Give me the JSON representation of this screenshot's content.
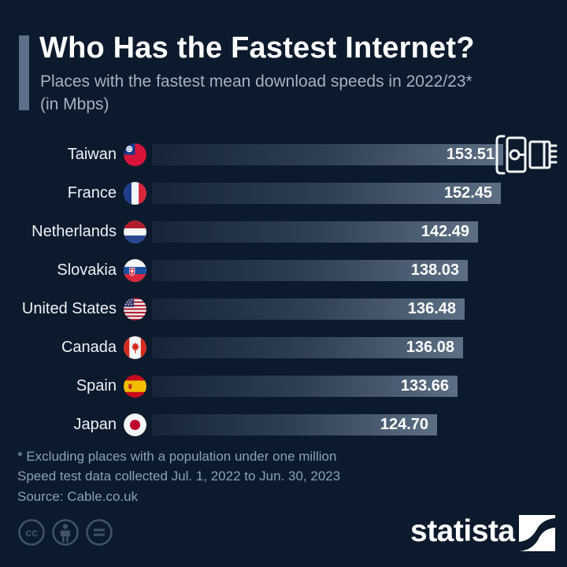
{
  "chart_data": {
    "type": "bar",
    "orientation": "horizontal",
    "title": "Who Has the Fastest Internet?",
    "subtitle": "Places with the fastest mean download speeds in 2022/23*",
    "unit_note": "(in Mbps)",
    "unit": "Mbps",
    "categories": [
      "Taiwan",
      "France",
      "Netherlands",
      "Slovakia",
      "United States",
      "Canada",
      "Spain",
      "Japan"
    ],
    "values": [
      153.51,
      152.45,
      142.49,
      138.03,
      136.48,
      136.08,
      133.66,
      124.7
    ],
    "value_labels": [
      "153.51",
      "152.45",
      "142.49",
      "138.03",
      "136.48",
      "136.08",
      "133.66",
      "124.70"
    ],
    "flags": [
      "taiwan",
      "france",
      "netherlands",
      "slovakia",
      "united-states",
      "canada",
      "spain",
      "japan"
    ],
    "xlim": [
      0,
      154.5
    ],
    "grid": false,
    "legend": false,
    "footnotes": [
      "* Excluding places with a population under one million",
      "Speed test data collected Jul. 1, 2022 to Jun. 30, 2023"
    ],
    "source": "Source: Cable.co.uk"
  },
  "branding": {
    "wordmark": "statista",
    "license_icons": [
      "cc-icon",
      "attribution-icon",
      "nd-icon"
    ]
  },
  "decorations": {
    "header_icon": "ethernet-plug-icon"
  },
  "colors": {
    "background": "#0c1a2d",
    "bar_gradient_end": "#5c6f84",
    "accent_bar": "#5d7089",
    "title": "#ffffff",
    "subtitle": "#a4b2c4",
    "footnote": "#8da0b5",
    "value_text": "#ffffff",
    "statista_square": "#ffffff"
  }
}
